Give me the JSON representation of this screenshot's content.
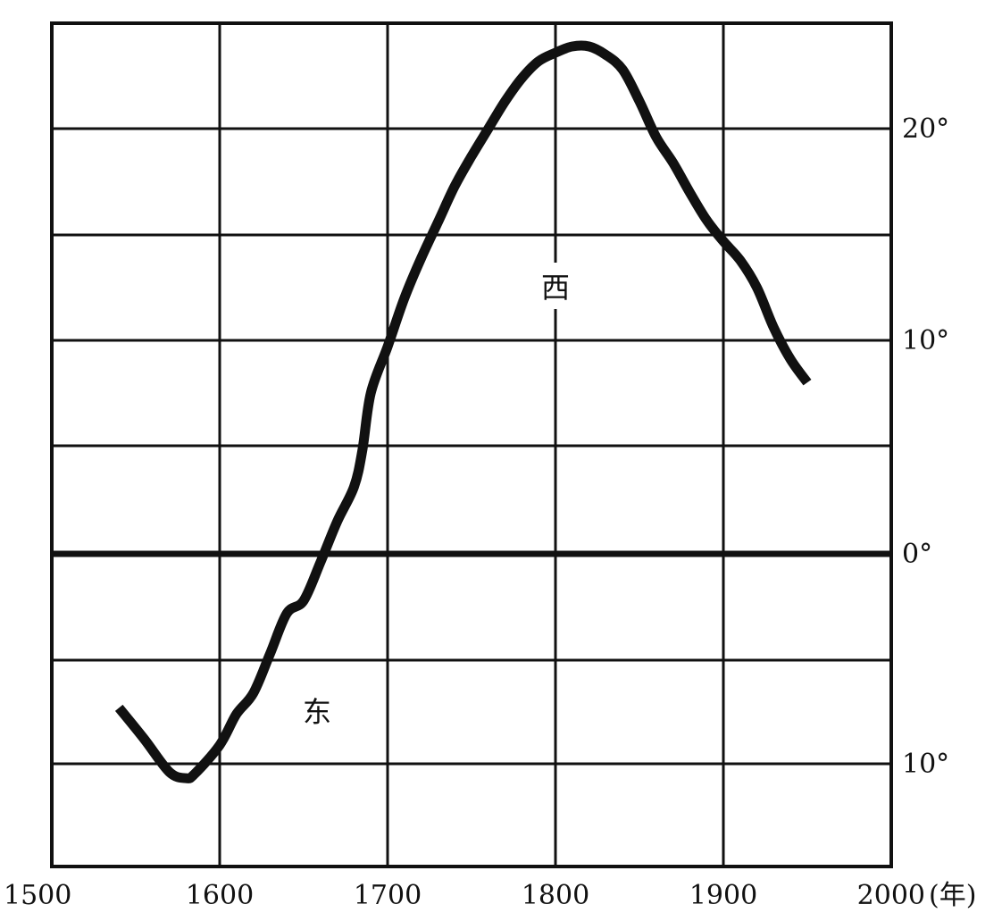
{
  "chart_data": {
    "type": "line",
    "title": "",
    "xlabel": "",
    "ylabel": "",
    "x_unit": "(年)",
    "xlim": [
      1500,
      2000
    ],
    "x_ticks": [
      {
        "value": 1500,
        "label": "1500"
      },
      {
        "value": 1600,
        "label": "1600"
      },
      {
        "value": 1700,
        "label": "1700"
      },
      {
        "value": 1800,
        "label": "1800"
      },
      {
        "value": 1900,
        "label": "1900"
      },
      {
        "value": 2000,
        "label": "2000"
      }
    ],
    "ylim": [
      -15,
      25
    ],
    "y_gridlines": [
      -10,
      -5,
      0,
      5,
      10,
      15,
      20,
      25
    ],
    "y_ticks": [
      {
        "value": 20,
        "label": "20°"
      },
      {
        "value": 10,
        "label": "10°"
      },
      {
        "value": 0,
        "label": "0°"
      },
      {
        "value": -10,
        "label": "10°"
      }
    ],
    "region_labels": [
      {
        "text": "西",
        "x": 1800,
        "y": 12.5
      },
      {
        "text": "东",
        "x": 1658,
        "y": -7.5
      }
    ],
    "grid": true,
    "legend": "none",
    "colors": {
      "line": "#111111",
      "grid": "#111111",
      "background": "#ffffff"
    },
    "series": [
      {
        "x": [
          1540,
          1555,
          1570,
          1580,
          1585,
          1600,
          1610,
          1620,
          1630,
          1640,
          1650,
          1660,
          1670,
          1680,
          1685,
          1690,
          1700,
          1710,
          1720,
          1730,
          1740,
          1750,
          1760,
          1770,
          1780,
          1790,
          1800,
          1810,
          1820,
          1830,
          1840,
          1850,
          1860,
          1870,
          1880,
          1890,
          1900,
          1910,
          1920,
          1930,
          1940,
          1950
        ],
        "y": [
          -7.3,
          -8.8,
          -10.4,
          -10.7,
          -10.5,
          -9.1,
          -7.6,
          -6.6,
          -4.7,
          -2.8,
          -2.2,
          -0.4,
          1.5,
          3.1,
          4.8,
          7.5,
          9.7,
          12.0,
          13.9,
          15.6,
          17.3,
          18.7,
          20.0,
          21.3,
          22.4,
          23.2,
          23.6,
          23.9,
          23.9,
          23.5,
          22.8,
          21.3,
          19.6,
          18.4,
          17.0,
          15.7,
          14.7,
          13.8,
          12.5,
          10.6,
          9.1,
          8.0
        ]
      }
    ]
  }
}
